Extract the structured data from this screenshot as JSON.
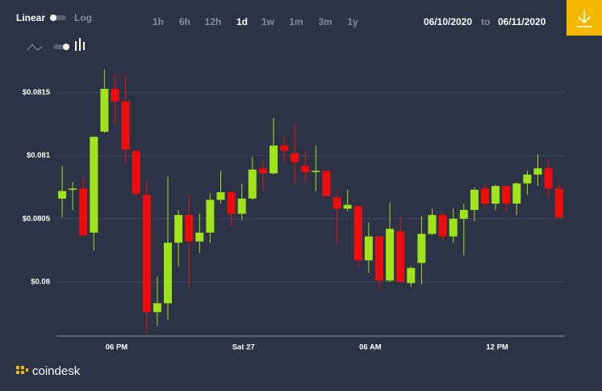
{
  "controls": {
    "scale_linear": "Linear",
    "scale_log": "Log",
    "timeframes": [
      "1h",
      "6h",
      "12h",
      "1d",
      "1w",
      "1m",
      "3m",
      "1y"
    ],
    "active_timeframe": 3,
    "date_from": "06/10/2020",
    "date_separator": "to",
    "date_to": "06/11/2020"
  },
  "brand": "coindesk",
  "chart_data": {
    "type": "candlestick",
    "categories": [
      null,
      null,
      null,
      null,
      null,
      "06 PM",
      null,
      null,
      null,
      null,
      null,
      null,
      null,
      null,
      null,
      null,
      null,
      "Sat 27",
      null,
      null,
      null,
      null,
      null,
      null,
      null,
      null,
      null,
      null,
      null,
      "06 AM",
      null,
      null,
      null,
      null,
      null,
      null,
      null,
      null,
      null,
      null,
      null,
      "12 PM",
      null,
      null,
      null,
      null,
      null,
      null
    ],
    "open": [
      0.08066,
      0.08073,
      0.08074,
      0.08039,
      0.08119,
      0.08153,
      0.08143,
      0.08104,
      0.08069,
      0.07976,
      0.07983,
      0.08031,
      0.08053,
      0.08032,
      0.08039,
      0.08065,
      0.08071,
      0.08054,
      0.08066,
      0.0809,
      0.08086,
      0.08108,
      0.08102,
      0.08092,
      0.08087,
      0.08088,
      0.08067,
      0.08058,
      0.0806,
      0.08017,
      0.08036,
      0.08001,
      0.0804,
      0.07999,
      0.08015,
      0.08038,
      0.08053,
      0.08036,
      0.0805,
      0.08057,
      0.08074,
      0.08062,
      0.08076,
      0.08062,
      0.08078,
      0.08085,
      0.0809,
      0.08074
    ],
    "high": [
      0.08092,
      0.08079,
      0.08083,
      0.08115,
      0.08168,
      0.08165,
      0.08164,
      0.08104,
      0.0808,
      0.08004,
      0.08083,
      0.08057,
      0.0807,
      0.08054,
      0.0807,
      0.08088,
      0.08072,
      0.08078,
      0.08099,
      0.08096,
      0.0813,
      0.08116,
      0.08126,
      0.08104,
      0.08108,
      0.08088,
      0.08072,
      0.08073,
      0.0806,
      0.08047,
      0.08036,
      0.08063,
      0.08051,
      0.08012,
      0.08052,
      0.08058,
      0.08056,
      0.08058,
      0.08062,
      0.08075,
      0.08078,
      0.08077,
      0.08076,
      0.08079,
      0.08088,
      0.08101,
      0.08096,
      0.08078
    ],
    "low": [
      0.08051,
      0.08057,
      0.08036,
      0.08025,
      0.08118,
      0.08124,
      0.08094,
      0.08067,
      0.07958,
      0.07965,
      0.0797,
      0.08012,
      0.07996,
      0.08023,
      0.08031,
      0.08062,
      0.08044,
      0.08049,
      0.08065,
      0.08072,
      0.08085,
      0.08094,
      0.08078,
      0.08079,
      0.08072,
      0.08068,
      0.0803,
      0.08056,
      0.08012,
      0.08007,
      0.07994,
      0.08,
      0.07999,
      0.07996,
      0.07998,
      0.08037,
      0.08033,
      0.08031,
      0.08021,
      0.08048,
      0.08059,
      0.08057,
      0.08054,
      0.08053,
      0.08069,
      0.08076,
      0.08067,
      0.0805
    ],
    "close": [
      0.08072,
      0.08074,
      0.08037,
      0.08115,
      0.08153,
      0.08143,
      0.08105,
      0.0807,
      0.07976,
      0.07983,
      0.08031,
      0.08053,
      0.08032,
      0.08039,
      0.08065,
      0.08071,
      0.08054,
      0.08066,
      0.08089,
      0.08086,
      0.08108,
      0.08104,
      0.08095,
      0.08087,
      0.08088,
      0.08068,
      0.08058,
      0.08061,
      0.08017,
      0.08036,
      0.08001,
      0.08042,
      0.08,
      0.08011,
      0.08038,
      0.08053,
      0.08036,
      0.0805,
      0.08057,
      0.08073,
      0.08062,
      0.08076,
      0.08062,
      0.08078,
      0.08085,
      0.0809,
      0.08074,
      0.08051
    ],
    "up_color": "#9fe31b",
    "down_color": "#ee0d0d",
    "ylim": [
      0.07957,
      0.08169
    ],
    "yticks": [
      {
        "value": 0.08,
        "label": "$0.08"
      },
      {
        "value": 0.0805,
        "label": "$0.0805"
      },
      {
        "value": 0.081,
        "label": "$0.081"
      },
      {
        "value": 0.0815,
        "label": "$0.0815"
      }
    ],
    "grid": true
  }
}
